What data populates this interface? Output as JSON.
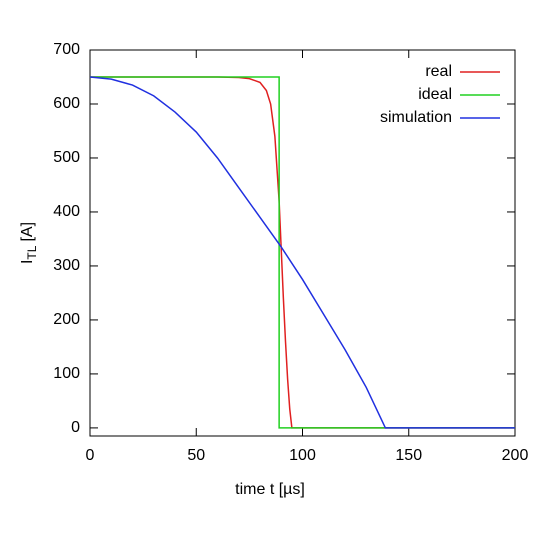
{
  "chart_data": {
    "type": "line",
    "xlabel": "time t [µs]",
    "ylabel": "I",
    "ylabel_sub": "TL",
    "ylabel_unit": "[A]",
    "xlim": [
      0,
      200
    ],
    "ylim": [
      -15,
      700
    ],
    "xticks": [
      0,
      50,
      100,
      150,
      200
    ],
    "yticks": [
      0,
      100,
      200,
      300,
      400,
      500,
      600,
      700
    ],
    "legend": "top-right",
    "series": [
      {
        "name": "real",
        "color": "#e02020",
        "x": [
          0,
          60,
          70,
          75,
          80,
          83,
          85,
          87,
          89,
          90,
          91,
          92,
          93,
          94,
          95,
          100,
          200
        ],
        "values": [
          650,
          650,
          649,
          647,
          640,
          625,
          600,
          540,
          420,
          330,
          240,
          160,
          90,
          35,
          0,
          0,
          0
        ]
      },
      {
        "name": "ideal",
        "color": "#20d020",
        "x": [
          0,
          89,
          89,
          200
        ],
        "values": [
          650,
          650,
          0,
          0
        ]
      },
      {
        "name": "simulation",
        "color": "#2030e0",
        "x": [
          0,
          10,
          20,
          30,
          40,
          50,
          60,
          70,
          80,
          90,
          100,
          110,
          120,
          130,
          139,
          150,
          200
        ],
        "values": [
          650,
          646,
          635,
          615,
          585,
          548,
          500,
          445,
          390,
          335,
          275,
          210,
          145,
          75,
          0,
          0,
          0
        ]
      }
    ]
  }
}
